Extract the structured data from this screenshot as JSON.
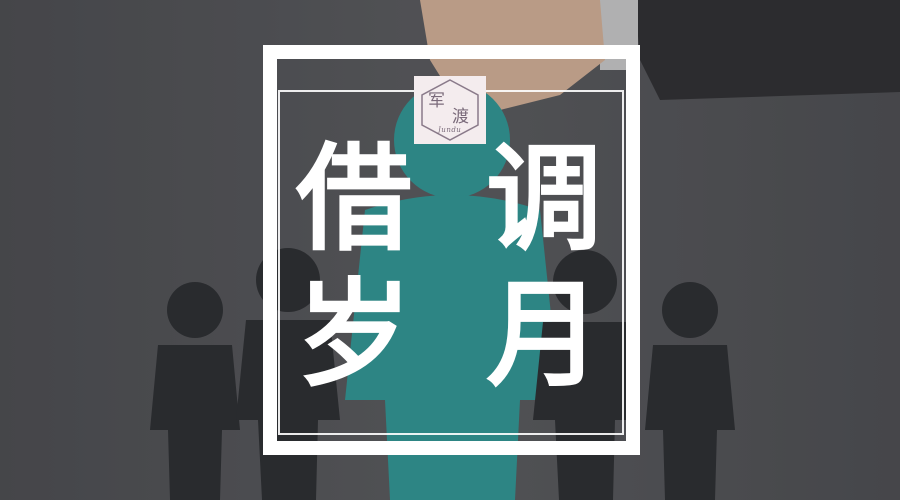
{
  "logo": {
    "char1": "军",
    "char2": "渡",
    "subtitle": "Jundu"
  },
  "title": {
    "char1": "借",
    "char2": "调",
    "char3": "岁",
    "char4": "月"
  },
  "colors": {
    "frame": "#ffffff",
    "figure_center": "#2f9a98",
    "figure_dark": "#2a2c2f",
    "background": "#4a4b4e",
    "logo_bg": "#f4ecee"
  }
}
